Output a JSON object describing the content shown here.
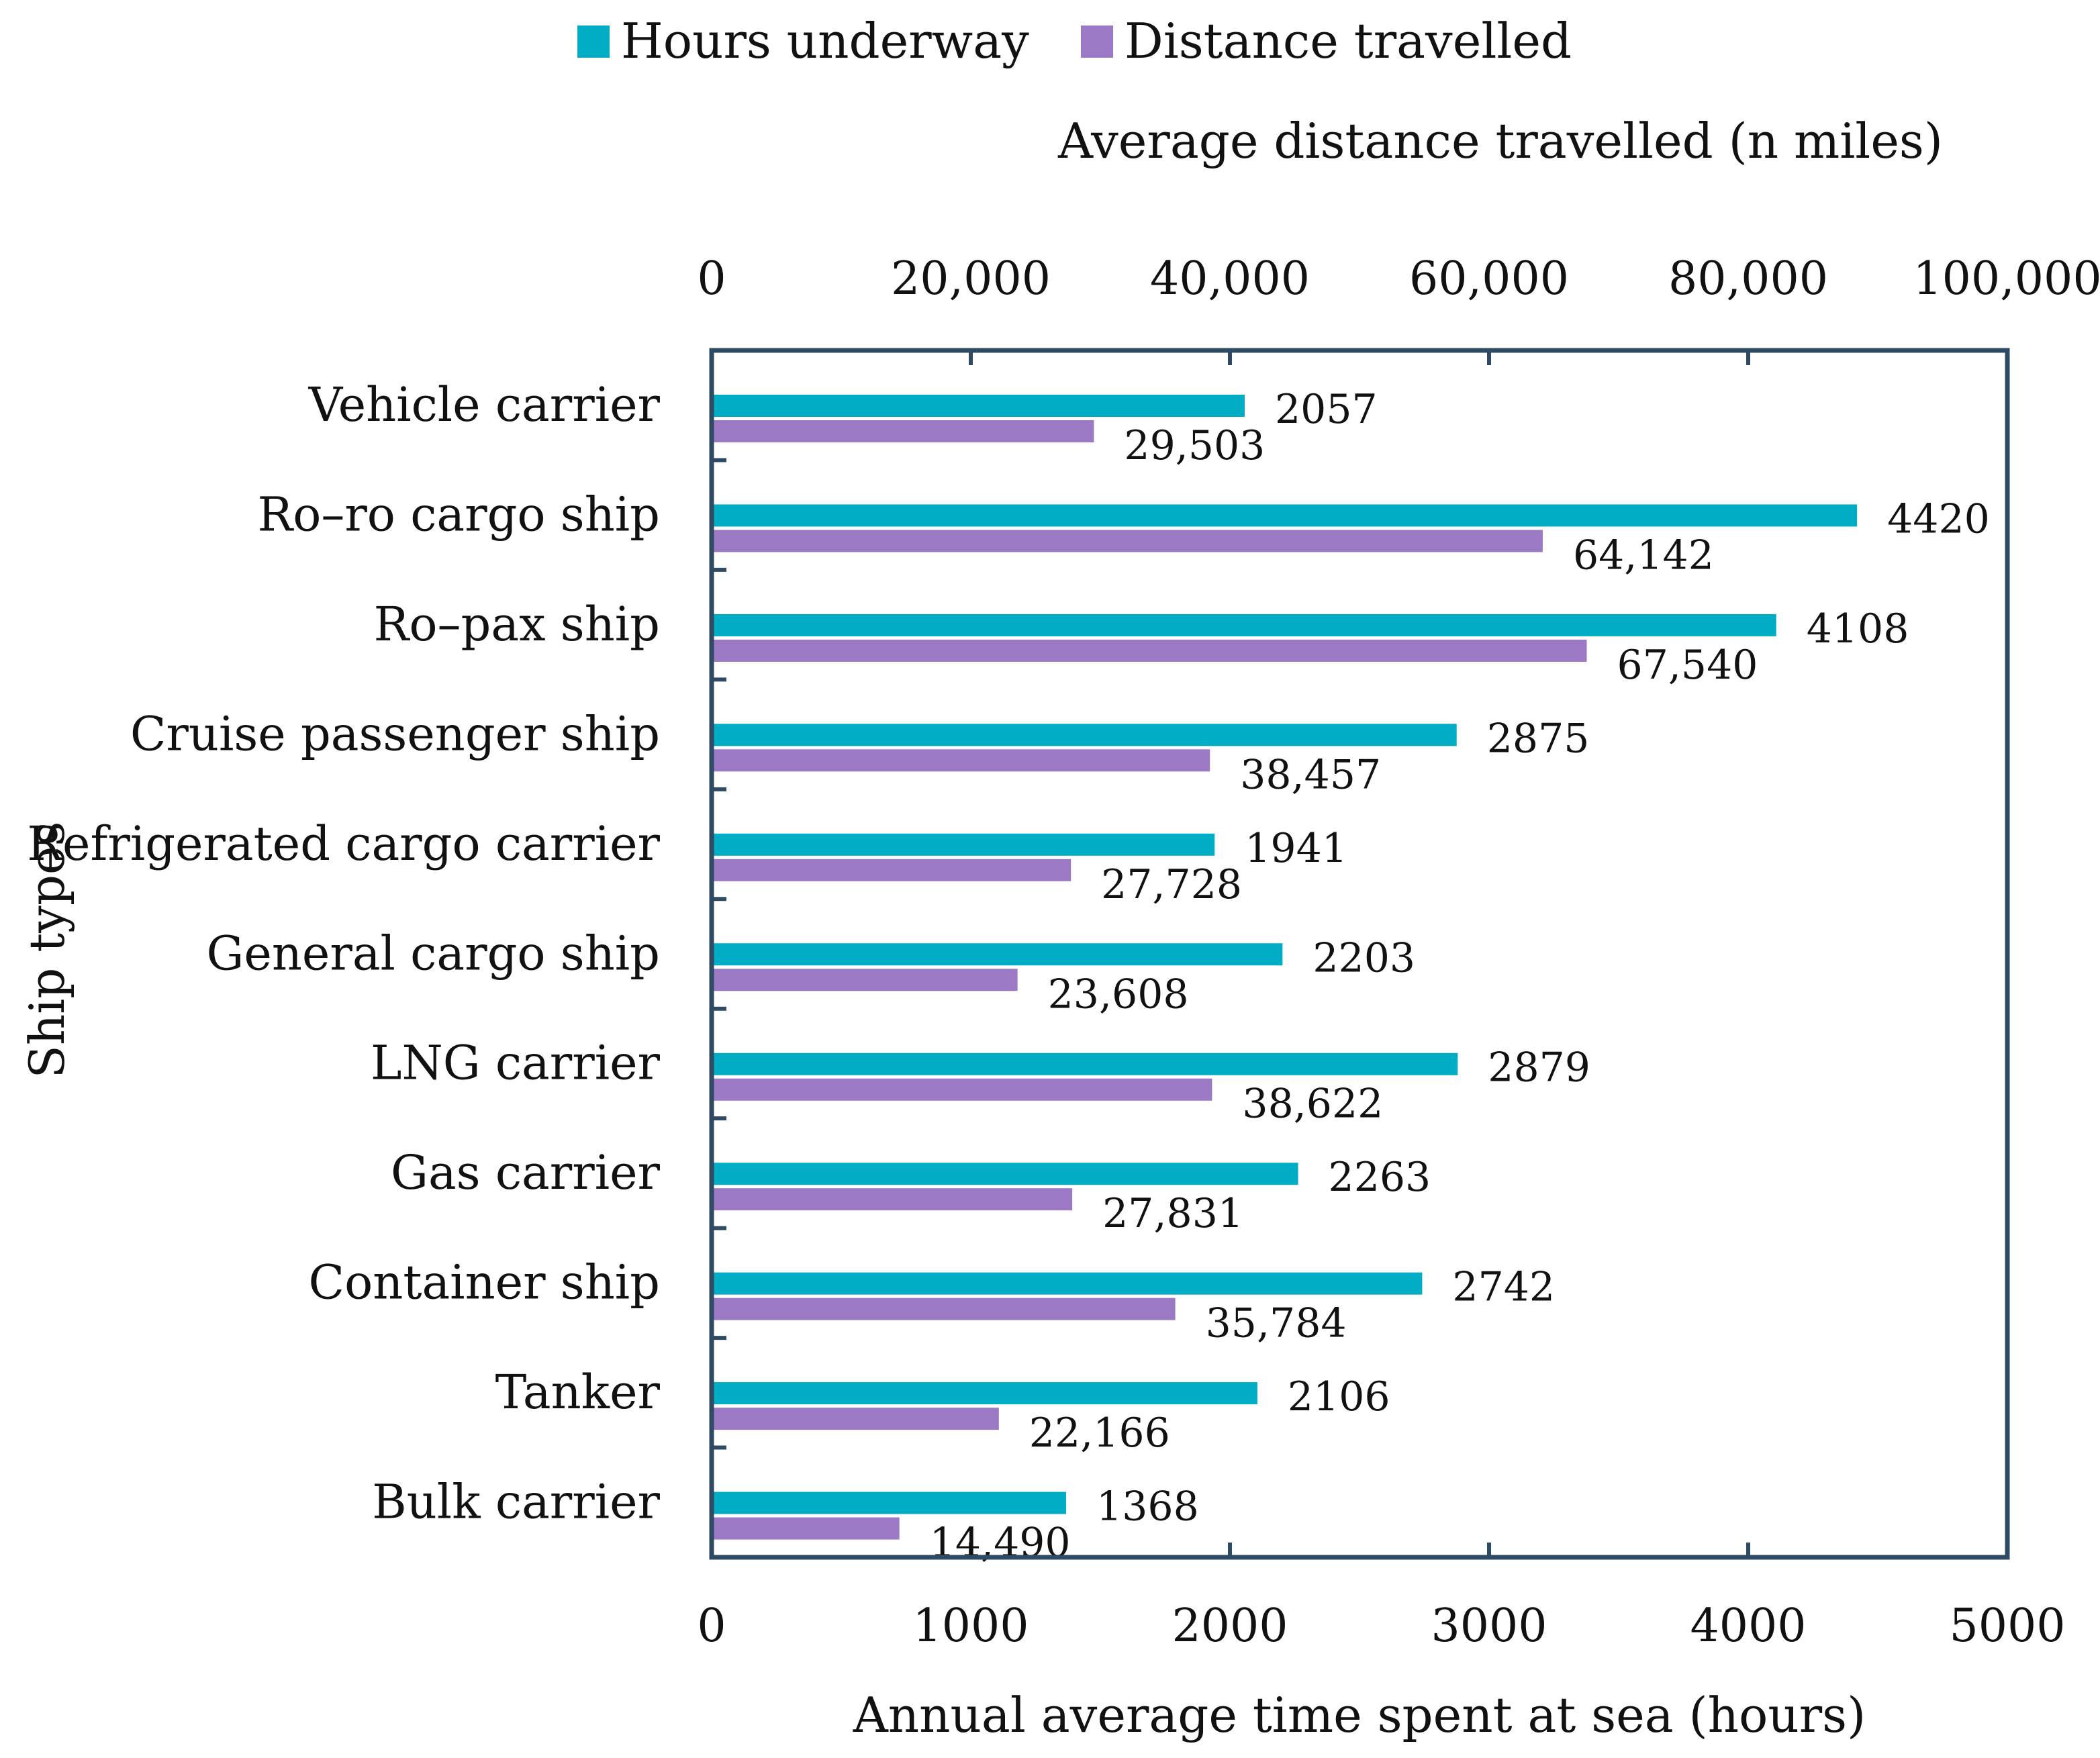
{
  "chart_data": {
    "type": "bar",
    "orientation": "horizontal",
    "categories": [
      "Vehicle carrier",
      "Ro–ro cargo ship",
      "Ro–pax ship",
      "Cruise passenger ship",
      "Refrigerated cargo carrier",
      "General cargo ship",
      "LNG carrier",
      "Gas carrier",
      "Container ship",
      "Tanker",
      "Bulk carrier"
    ],
    "series": [
      {
        "name": "Hours underway",
        "axis": "bottom",
        "color": "#00adc4",
        "values": [
          2057,
          4420,
          4108,
          2875,
          1941,
          2203,
          2879,
          2263,
          2742,
          2106,
          1368
        ],
        "labels": [
          "2057",
          "4420",
          "4108",
          "2875",
          "1941",
          "2203",
          "2879",
          "2263",
          "2742",
          "2106",
          "1368"
        ]
      },
      {
        "name": "Distance travelled",
        "axis": "top",
        "color": "#9b79c4",
        "values": [
          29503,
          64142,
          67540,
          38457,
          27728,
          23608,
          38622,
          27831,
          35784,
          22166,
          14490
        ],
        "labels": [
          "29,503",
          "64,142",
          "67,540",
          "38,457",
          "27,728",
          "23,608",
          "38,622",
          "27,831",
          "35,784",
          "22,166",
          "14,490"
        ]
      }
    ],
    "ylabel": "Ship types",
    "bottom_axis": {
      "title": "Annual average time spent at sea (hours)",
      "range": [
        0,
        5000
      ],
      "ticks": [
        0,
        1000,
        2000,
        3000,
        4000,
        5000
      ],
      "tick_labels": [
        "0",
        "1000",
        "2000",
        "3000",
        "4000",
        "5000"
      ]
    },
    "top_axis": {
      "title": "Average distance travelled (n miles)",
      "range": [
        0,
        100000
      ],
      "ticks": [
        0,
        20000,
        40000,
        60000,
        80000,
        100000
      ],
      "tick_labels": [
        "0",
        "20,000",
        "40,000",
        "60,000",
        "80,000",
        "100,000"
      ]
    },
    "legend_position": "top",
    "frame_color": "#2f4a63"
  }
}
